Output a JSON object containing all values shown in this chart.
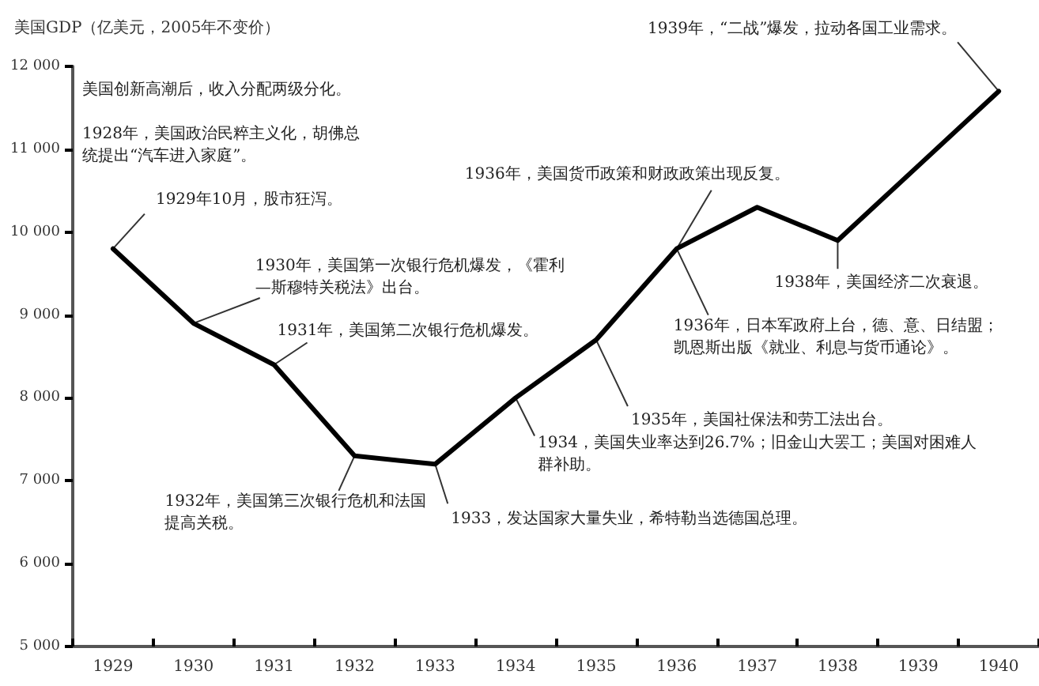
{
  "chart_data": {
    "type": "line",
    "ylabel": "美国GDP（亿美元，2005年不变价）",
    "categories": [
      "1929",
      "1930",
      "1931",
      "1932",
      "1933",
      "1934",
      "1935",
      "1936",
      "1937",
      "1938",
      "1939",
      "1940"
    ],
    "series": [
      {
        "color": "#000000",
        "values": [
          9800,
          8900,
          8400,
          7300,
          7200,
          8000,
          8700,
          9800,
          10300,
          9900,
          10800,
          11700
        ]
      }
    ],
    "ylim": [
      5000,
      12000
    ],
    "yticks": [
      {
        "value": 5000,
        "label": "5 000"
      },
      {
        "value": 6000,
        "label": "6 000"
      },
      {
        "value": 7000,
        "label": "7 000"
      },
      {
        "value": 8000,
        "label": "8 000"
      },
      {
        "value": 9000,
        "label": "9 000"
      },
      {
        "value": 10000,
        "label": "10 000"
      },
      {
        "value": 11000,
        "label": "11 000"
      },
      {
        "value": 12000,
        "label": "12 000"
      }
    ],
    "grid": false,
    "marker": "none",
    "line_style": "solid",
    "annotations": [
      "美国创新高潮后，收入分配两级分化。",
      "1928年，美国政治民粹主义化，胡佛总统提出“汽车进入家庭”。",
      {
        "text": "1929年10月，股市狂泻。",
        "x": "1929",
        "y": 9800
      },
      {
        "text": "1930年，美国第一次银行危机爆发，《霍利—斯穆特关税法》出台。",
        "x": "1930",
        "y": 8900
      },
      {
        "text": "1931年，美国第二次银行危机爆发。",
        "x": "1931",
        "y": 8400
      },
      {
        "text": "1932年，美国第三次银行危机和法国提高关税。",
        "x": "1932",
        "y": 7300
      },
      {
        "text": "1933，发达国家大量失业，希特勒当选德国总理。",
        "x": "1933",
        "y": 7200
      },
      {
        "text": "1934，美国失业率达到26.7%；旧金山大罢工；美国对困难人群补助。",
        "x": "1934",
        "y": 8000
      },
      {
        "text": "1935年，美国社保法和劳工法出台。",
        "x": "1935",
        "y": 8700
      },
      {
        "text": "1936年，美国货币政策和财政政策出现反复。",
        "x": "1936",
        "y": 9800
      },
      {
        "text": "1936年，日本军政府上台，德、意、日结盟；凯恩斯出版《就业、利息与货币通论》。",
        "x": "1936",
        "y": 9800
      },
      {
        "text": "1938年，美国经济二次衰退。",
        "x": "1938",
        "y": 9900
      },
      {
        "text": "1939年，“二战”爆发，拉动各国工业需求。",
        "x": "1940",
        "y": 11700
      }
    ]
  }
}
